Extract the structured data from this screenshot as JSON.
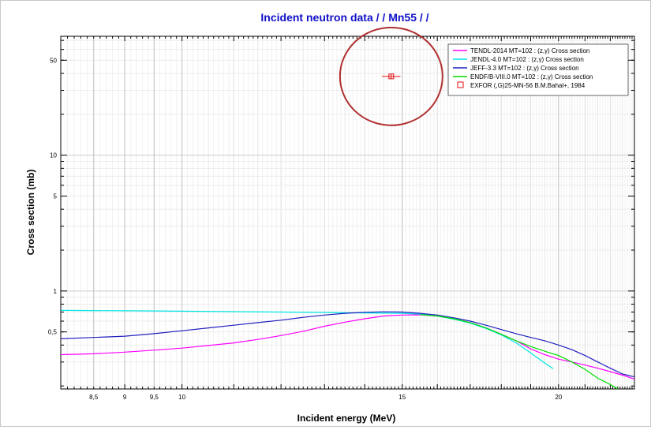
{
  "chart_data": {
    "type": "line",
    "title": "Incident neutron data / / Mn55 / /",
    "xlabel": "Incident energy (MeV)",
    "ylabel": "Cross section (mb)",
    "xscale": "log",
    "yscale": "log",
    "xlim": [
      8,
      23
    ],
    "ylim": [
      0.19,
      75
    ],
    "grid": true,
    "legend_position": "top-right",
    "x_ticks": [
      {
        "value": 8.5,
        "label": "8,5"
      },
      {
        "value": 9,
        "label": "9"
      },
      {
        "value": 9.5,
        "label": "9,5"
      },
      {
        "value": 10,
        "label": "10"
      },
      {
        "value": 15,
        "label": "15"
      },
      {
        "value": 20,
        "label": "20"
      }
    ],
    "y_ticks": [
      {
        "value": 0.5,
        "label": "0,5"
      },
      {
        "value": 1,
        "label": "1"
      },
      {
        "value": 5,
        "label": "5"
      },
      {
        "value": 10,
        "label": "10"
      },
      {
        "value": 50,
        "label": "50"
      }
    ],
    "series": [
      {
        "name": "TENDL-2014  MT=102 : (z,γ) Cross section",
        "color": "#ff00ff",
        "points": [
          [
            8,
            0.34
          ],
          [
            8.5,
            0.345
          ],
          [
            9,
            0.355
          ],
          [
            9.5,
            0.367
          ],
          [
            10,
            0.38
          ],
          [
            10.5,
            0.397
          ],
          [
            11,
            0.415
          ],
          [
            11.5,
            0.44
          ],
          [
            12,
            0.47
          ],
          [
            12.5,
            0.505
          ],
          [
            13,
            0.55
          ],
          [
            13.5,
            0.59
          ],
          [
            14,
            0.625
          ],
          [
            14.5,
            0.655
          ],
          [
            15,
            0.665
          ],
          [
            15.5,
            0.668
          ],
          [
            16,
            0.655
          ],
          [
            16.5,
            0.625
          ],
          [
            17,
            0.585
          ],
          [
            17.5,
            0.535
          ],
          [
            18,
            0.48
          ],
          [
            18.5,
            0.43
          ],
          [
            19,
            0.375
          ],
          [
            19.5,
            0.34
          ],
          [
            20,
            0.315
          ],
          [
            20.5,
            0.3
          ],
          [
            21,
            0.285
          ],
          [
            21.5,
            0.27
          ],
          [
            22,
            0.255
          ],
          [
            22.5,
            0.24
          ],
          [
            23,
            0.225
          ]
        ]
      },
      {
        "name": "JENDL-4.0  MT=102 : (z,γ) Cross section",
        "color": "#00e5e5",
        "points": [
          [
            8,
            0.72
          ],
          [
            9,
            0.715
          ],
          [
            10,
            0.71
          ],
          [
            11,
            0.705
          ],
          [
            12,
            0.7
          ],
          [
            13,
            0.695
          ],
          [
            14,
            0.69
          ],
          [
            15,
            0.685
          ],
          [
            15.5,
            0.675
          ],
          [
            16,
            0.655
          ],
          [
            16.5,
            0.62
          ],
          [
            17,
            0.58
          ],
          [
            17.5,
            0.53
          ],
          [
            18,
            0.475
          ],
          [
            18.5,
            0.415
          ],
          [
            19,
            0.35
          ],
          [
            19.5,
            0.295
          ],
          [
            19.8,
            0.268
          ]
        ]
      },
      {
        "name": "JEFF-3.3  MT=102 : (z,γ) Cross section",
        "color": "#2020c0",
        "points": [
          [
            8,
            0.445
          ],
          [
            8.5,
            0.455
          ],
          [
            9,
            0.465
          ],
          [
            9.5,
            0.485
          ],
          [
            10,
            0.51
          ],
          [
            10.5,
            0.535
          ],
          [
            11,
            0.56
          ],
          [
            11.5,
            0.585
          ],
          [
            12,
            0.61
          ],
          [
            12.5,
            0.64
          ],
          [
            13,
            0.665
          ],
          [
            13.5,
            0.685
          ],
          [
            14,
            0.697
          ],
          [
            14.5,
            0.703
          ],
          [
            15,
            0.7
          ],
          [
            15.5,
            0.685
          ],
          [
            16,
            0.665
          ],
          [
            16.5,
            0.635
          ],
          [
            17,
            0.6
          ],
          [
            17.5,
            0.56
          ],
          [
            18,
            0.52
          ],
          [
            18.5,
            0.485
          ],
          [
            19,
            0.455
          ],
          [
            19.5,
            0.43
          ],
          [
            20,
            0.4
          ],
          [
            20.5,
            0.37
          ],
          [
            21,
            0.335
          ],
          [
            21.5,
            0.3
          ],
          [
            22,
            0.27
          ],
          [
            22.5,
            0.245
          ],
          [
            23,
            0.233
          ]
        ]
      },
      {
        "name": "ENDF/B-VIII.0  MT=102 : (z,γ) Cross section",
        "color": "#00dd00",
        "points": [
          [
            15.5,
            0.67
          ],
          [
            16,
            0.655
          ],
          [
            16.5,
            0.625
          ],
          [
            17,
            0.585
          ],
          [
            17.5,
            0.535
          ],
          [
            18,
            0.48
          ],
          [
            18.5,
            0.43
          ],
          [
            19,
            0.39
          ],
          [
            19.5,
            0.36
          ],
          [
            20,
            0.335
          ],
          [
            20.5,
            0.3
          ],
          [
            21,
            0.265
          ],
          [
            21.5,
            0.228
          ],
          [
            22,
            0.205
          ],
          [
            22.3,
            0.19
          ]
        ]
      }
    ],
    "exfor": {
      "name": "EXFOR  (,G)25-MN-56 B.M.Bahal+, 1984",
      "color": "#e01010",
      "x": 14.7,
      "y": 38,
      "x_err": 0.25,
      "y_err": 1.5
    },
    "annotation": {
      "shape": "circle",
      "color": "#b03030",
      "center_x": 14.7,
      "center_y": 38
    }
  }
}
